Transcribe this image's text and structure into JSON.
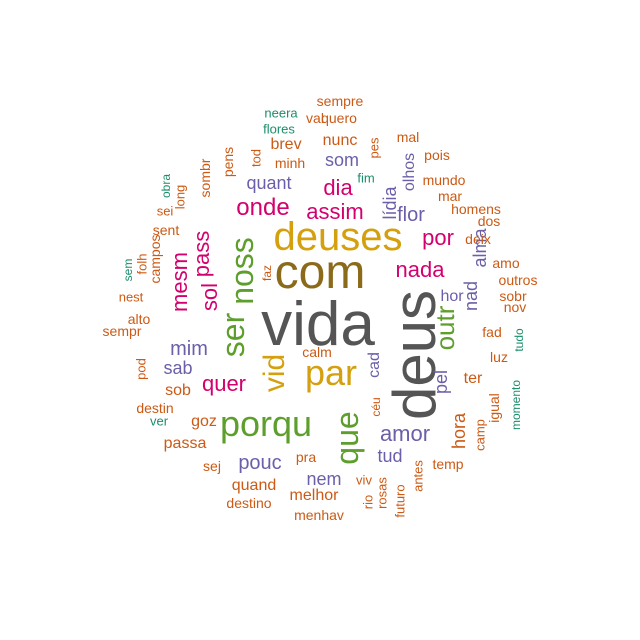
{
  "palette": {
    "gray": "#555555",
    "brown": "#8B6A1A",
    "gold": "#D4A00E",
    "green": "#5E9E2C",
    "magenta": "#D3006E",
    "purple": "#6A5FA8",
    "orange": "#CC5A14",
    "teal": "#1B8E6B"
  },
  "words": [
    {
      "text": "vida",
      "color": "gray",
      "vertical": false
    },
    {
      "text": "deus",
      "color": "gray",
      "vertical": true
    },
    {
      "text": "com",
      "color": "brown",
      "vertical": false
    },
    {
      "text": "deuses",
      "color": "gold",
      "vertical": false
    },
    {
      "text": "par",
      "color": "gold",
      "vertical": false
    },
    {
      "text": "vid",
      "color": "gold",
      "vertical": true
    },
    {
      "text": "porqu",
      "color": "green",
      "vertical": false
    },
    {
      "text": "noss",
      "color": "green",
      "vertical": true
    },
    {
      "text": "ser",
      "color": "green",
      "vertical": true
    },
    {
      "text": "que",
      "color": "green",
      "vertical": true
    },
    {
      "text": "outr",
      "color": "green",
      "vertical": true
    },
    {
      "text": "onde",
      "color": "magenta",
      "vertical": false
    },
    {
      "text": "assim",
      "color": "magenta",
      "vertical": false
    },
    {
      "text": "dia",
      "color": "magenta",
      "vertical": false
    },
    {
      "text": "nada",
      "color": "magenta",
      "vertical": false
    },
    {
      "text": "quer",
      "color": "magenta",
      "vertical": false
    },
    {
      "text": "por",
      "color": "magenta",
      "vertical": false
    },
    {
      "text": "pass",
      "color": "magenta",
      "vertical": true
    },
    {
      "text": "sol",
      "color": "magenta",
      "vertical": true
    },
    {
      "text": "mesm",
      "color": "magenta",
      "vertical": true
    },
    {
      "text": "amor",
      "color": "purple",
      "vertical": false
    },
    {
      "text": "mim",
      "color": "purple",
      "vertical": false
    },
    {
      "text": "flor",
      "color": "purple",
      "vertical": false
    },
    {
      "text": "pouc",
      "color": "purple",
      "vertical": false
    },
    {
      "text": "tud",
      "color": "purple",
      "vertical": false
    },
    {
      "text": "nem",
      "color": "purple",
      "vertical": false
    },
    {
      "text": "sab",
      "color": "purple",
      "vertical": false
    },
    {
      "text": "som",
      "color": "purple",
      "vertical": false
    },
    {
      "text": "quant",
      "color": "purple",
      "vertical": false
    },
    {
      "text": "hor",
      "color": "purple",
      "vertical": false
    },
    {
      "text": "nad",
      "color": "purple",
      "vertical": true
    },
    {
      "text": "alma",
      "color": "purple",
      "vertical": true
    },
    {
      "text": "lídia",
      "color": "purple",
      "vertical": true
    },
    {
      "text": "pel",
      "color": "purple",
      "vertical": true
    },
    {
      "text": "cad",
      "color": "purple",
      "vertical": true
    },
    {
      "text": "olhos",
      "color": "purple",
      "vertical": true
    },
    {
      "text": "ter",
      "color": "orange",
      "vertical": false
    },
    {
      "text": "goz",
      "color": "orange",
      "vertical": false
    },
    {
      "text": "sob",
      "color": "orange",
      "vertical": false
    },
    {
      "text": "quand",
      "color": "orange",
      "vertical": false
    },
    {
      "text": "melhor",
      "color": "orange",
      "vertical": false
    },
    {
      "text": "passa",
      "color": "orange",
      "vertical": false
    },
    {
      "text": "brev",
      "color": "orange",
      "vertical": false
    },
    {
      "text": "nunc",
      "color": "orange",
      "vertical": false
    },
    {
      "text": "minh",
      "color": "orange",
      "vertical": false
    },
    {
      "text": "sent",
      "color": "orange",
      "vertical": false
    },
    {
      "text": "mar",
      "color": "orange",
      "vertical": false
    },
    {
      "text": "mundo",
      "color": "orange",
      "vertical": false
    },
    {
      "text": "deix",
      "color": "orange",
      "vertical": false
    },
    {
      "text": "luz",
      "color": "orange",
      "vertical": false
    },
    {
      "text": "fad",
      "color": "orange",
      "vertical": false
    },
    {
      "text": "sempr",
      "color": "orange",
      "vertical": false
    },
    {
      "text": "alto",
      "color": "orange",
      "vertical": false
    },
    {
      "text": "destin",
      "color": "orange",
      "vertical": false
    },
    {
      "text": "destino",
      "color": "orange",
      "vertical": false
    },
    {
      "text": "menhav",
      "color": "orange",
      "vertical": false
    },
    {
      "text": "temp",
      "color": "orange",
      "vertical": false
    },
    {
      "text": "sej",
      "color": "orange",
      "vertical": false
    },
    {
      "text": "pra",
      "color": "orange",
      "vertical": false
    },
    {
      "text": "calm",
      "color": "orange",
      "vertical": false
    },
    {
      "text": "amo",
      "color": "orange",
      "vertical": false
    },
    {
      "text": "outros",
      "color": "orange",
      "vertical": false
    },
    {
      "text": "sobr",
      "color": "orange",
      "vertical": false
    },
    {
      "text": "nov",
      "color": "orange",
      "vertical": false
    },
    {
      "text": "homens",
      "color": "orange",
      "vertical": false
    },
    {
      "text": "dos",
      "color": "orange",
      "vertical": false
    },
    {
      "text": "pois",
      "color": "orange",
      "vertical": false
    },
    {
      "text": "mal",
      "color": "orange",
      "vertical": false
    },
    {
      "text": "sempre",
      "color": "orange",
      "vertical": false
    },
    {
      "text": "quero",
      "color": "orange",
      "vertical": false
    },
    {
      "text": "val",
      "color": "orange",
      "vertical": false
    },
    {
      "text": "nest",
      "color": "orange",
      "vertical": false
    },
    {
      "text": "sei",
      "color": "orange",
      "vertical": false
    },
    {
      "text": "viv",
      "color": "orange",
      "vertical": false
    },
    {
      "text": "hora",
      "color": "orange",
      "vertical": true
    },
    {
      "text": "sombr",
      "color": "orange",
      "vertical": true
    },
    {
      "text": "pens",
      "color": "orange",
      "vertical": true
    },
    {
      "text": "tod",
      "color": "orange",
      "vertical": true
    },
    {
      "text": "pes",
      "color": "orange",
      "vertical": true
    },
    {
      "text": "campos",
      "color": "orange",
      "vertical": true
    },
    {
      "text": "folh",
      "color": "orange",
      "vertical": true
    },
    {
      "text": "long",
      "color": "orange",
      "vertical": true
    },
    {
      "text": "pod",
      "color": "orange",
      "vertical": true
    },
    {
      "text": "faz",
      "color": "orange",
      "vertical": true
    },
    {
      "text": "igual",
      "color": "orange",
      "vertical": true
    },
    {
      "text": "camp",
      "color": "orange",
      "vertical": true
    },
    {
      "text": "antes",
      "color": "orange",
      "vertical": true
    },
    {
      "text": "futuro",
      "color": "orange",
      "vertical": true
    },
    {
      "text": "rosas",
      "color": "orange",
      "vertical": true
    },
    {
      "text": "rio",
      "color": "orange",
      "vertical": true
    },
    {
      "text": "céu",
      "color": "orange",
      "vertical": true
    },
    {
      "text": "neera",
      "color": "teal",
      "vertical": false
    },
    {
      "text": "flores",
      "color": "teal",
      "vertical": false
    },
    {
      "text": "fim",
      "color": "teal",
      "vertical": false
    },
    {
      "text": "ver",
      "color": "teal",
      "vertical": false
    },
    {
      "text": "obra",
      "color": "teal",
      "vertical": true
    },
    {
      "text": "sem",
      "color": "teal",
      "vertical": true
    },
    {
      "text": "tudo",
      "color": "teal",
      "vertical": true
    },
    {
      "text": "momento",
      "color": "teal",
      "vertical": true
    }
  ]
}
